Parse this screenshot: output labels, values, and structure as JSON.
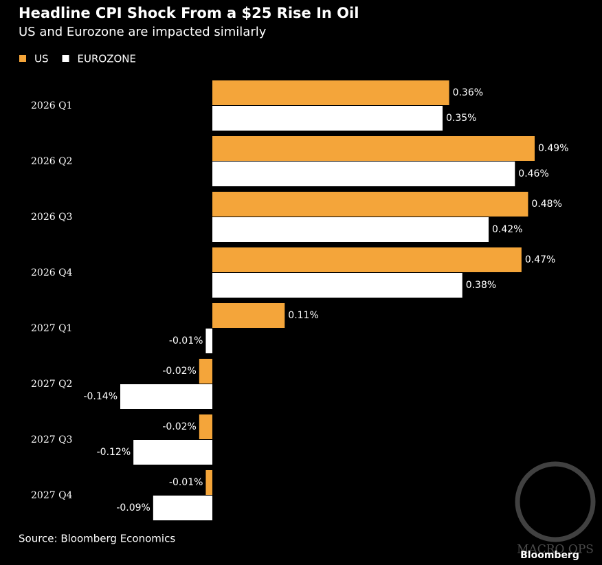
{
  "chart_data": {
    "type": "hbar",
    "title": "Headline CPI Shock From a $25 Rise In Oil",
    "subtitle": "US and Eurozone are impacted similarly",
    "categories": [
      "2026 Q1",
      "2026 Q2",
      "2026 Q3",
      "2026 Q4",
      "2027 Q1",
      "2027 Q2",
      "2027 Q3",
      "2027 Q4"
    ],
    "series": [
      {
        "name": "US",
        "color": "#f4a53a",
        "values": [
          0.36,
          0.49,
          0.48,
          0.47,
          0.11,
          -0.02,
          -0.02,
          -0.01
        ],
        "value_labels": [
          "0.36%",
          "0.49%",
          "0.48%",
          "0.47%",
          "0.11%",
          "-0.02%",
          "-0.02%",
          "-0.01%"
        ]
      },
      {
        "name": "EUROZONE",
        "color": "#ffffff",
        "values": [
          0.35,
          0.46,
          0.42,
          0.38,
          -0.01,
          -0.14,
          -0.12,
          -0.09
        ],
        "value_labels": [
          "0.35%",
          "0.46%",
          "0.42%",
          "0.38%",
          "-0.01%",
          "-0.14%",
          "-0.12%",
          "-0.09%"
        ]
      }
    ],
    "xlim": [
      -0.14,
      0.49
    ],
    "source": "Source: Bloomberg Economics",
    "brand": "Bloomberg",
    "watermark": "MACRO OPS"
  }
}
